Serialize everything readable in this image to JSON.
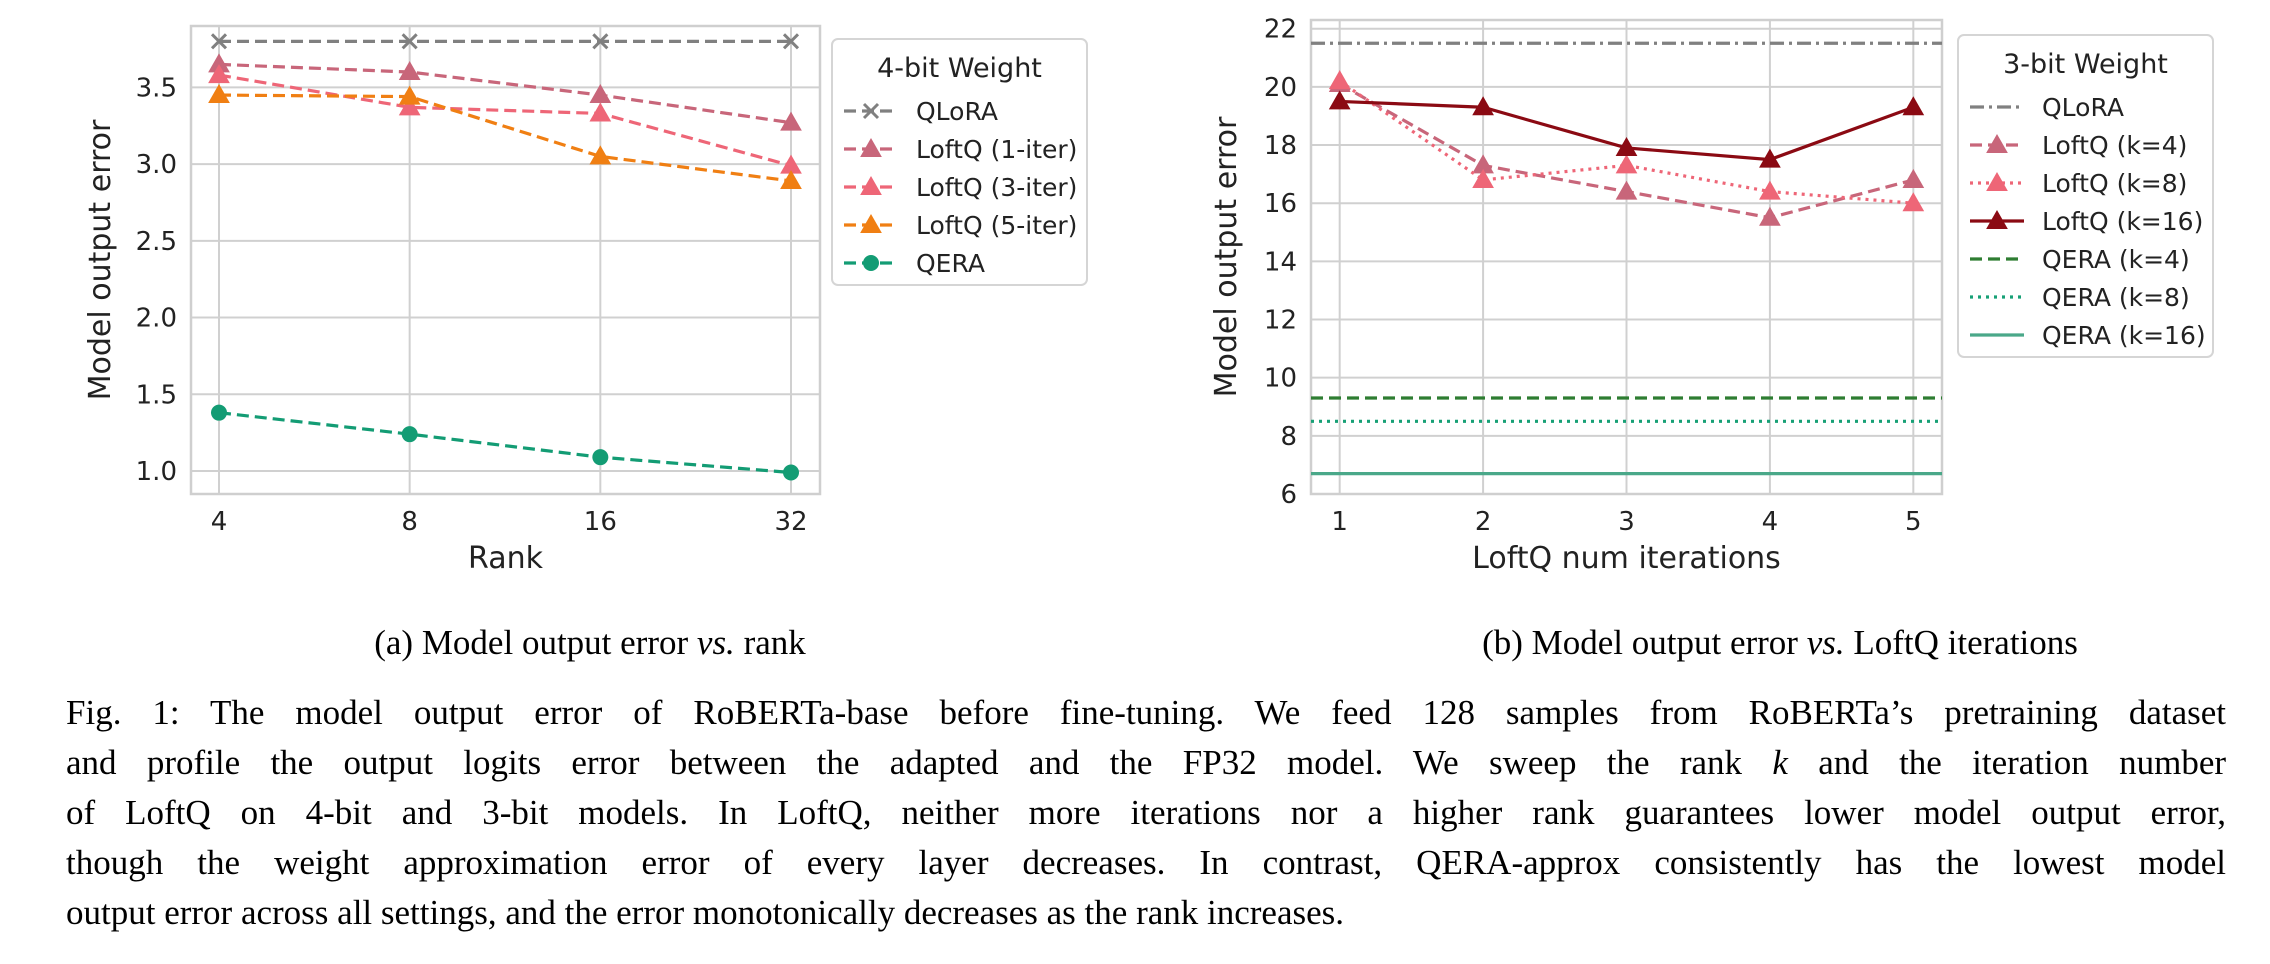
{
  "chart_data": [
    {
      "type": "line",
      "subcaption_prefix": "(a) Model output error ",
      "subcaption_vs": "vs.",
      "subcaption_suffix": " rank",
      "xlabel": "Rank",
      "ylabel": "Model output error",
      "x": [
        4,
        8,
        16,
        32
      ],
      "x_tick_labels": [
        "4",
        "8",
        "16",
        "32"
      ],
      "x_scale": "log2",
      "ylim": [
        0.85,
        3.9
      ],
      "y_ticks": [
        1.0,
        1.5,
        2.0,
        2.5,
        3.0,
        3.5
      ],
      "y_tick_labels": [
        "1.0",
        "1.5",
        "2.0",
        "2.5",
        "3.0",
        "3.5"
      ],
      "grid": true,
      "legend_title": "4-bit Weight",
      "legend_position": "upper-right-outside",
      "series": [
        {
          "name": "QLoRA",
          "values": [
            3.8,
            3.8,
            3.8,
            3.8
          ],
          "color": "#808080",
          "dash": "dashed",
          "marker": "x"
        },
        {
          "name": "LoftQ (1-iter)",
          "values": [
            3.65,
            3.6,
            3.45,
            3.27
          ],
          "color": "#c8667a",
          "dash": "dashed",
          "marker": "triangle"
        },
        {
          "name": "LoftQ (3-iter)",
          "values": [
            3.58,
            3.37,
            3.33,
            2.99
          ],
          "color": "#ee6677",
          "dash": "dashed",
          "marker": "triangle"
        },
        {
          "name": "LoftQ (5-iter)",
          "values": [
            3.45,
            3.44,
            3.05,
            2.89
          ],
          "color": "#f07f13",
          "dash": "dashed",
          "marker": "triangle"
        },
        {
          "name": "QERA",
          "values": [
            1.38,
            1.24,
            1.09,
            0.99
          ],
          "color": "#139c74",
          "dash": "dashed",
          "marker": "circle"
        }
      ]
    },
    {
      "type": "line",
      "subcaption_prefix": "(b) Model output error ",
      "subcaption_vs": "vs.",
      "subcaption_suffix": " LoftQ iterations",
      "xlabel": "LoftQ num iterations",
      "ylabel": "Model output error",
      "x": [
        1,
        2,
        3,
        4,
        5
      ],
      "x_tick_labels": [
        "1",
        "2",
        "3",
        "4",
        "5"
      ],
      "xlim": [
        0.8,
        5.2
      ],
      "ylim": [
        6,
        22.3
      ],
      "y_ticks": [
        6,
        8,
        10,
        12,
        14,
        16,
        18,
        20,
        22
      ],
      "y_tick_labels": [
        "6",
        "8",
        "10",
        "12",
        "14",
        "16",
        "18",
        "20",
        "22"
      ],
      "grid": true,
      "legend_title": "3-bit Weight",
      "legend_position": "upper-right",
      "series": [
        {
          "name": "QLoRA",
          "values": [
            21.5,
            21.5,
            21.5,
            21.5,
            21.5
          ],
          "color": "#808080",
          "dash": "dashdot",
          "marker": "none",
          "span": "full"
        },
        {
          "name": "LoftQ (k=4)",
          "values": [
            20.1,
            17.3,
            16.4,
            15.5,
            16.8
          ],
          "color": "#c8667a",
          "dash": "dashed",
          "marker": "triangle"
        },
        {
          "name": "LoftQ (k=8)",
          "values": [
            20.2,
            16.8,
            17.3,
            16.4,
            16.0
          ],
          "color": "#ee6677",
          "dash": "dotted",
          "marker": "triangle"
        },
        {
          "name": "LoftQ (k=16)",
          "values": [
            19.5,
            19.3,
            17.9,
            17.5,
            19.3
          ],
          "color": "#8b0a13",
          "dash": "solid",
          "marker": "triangle"
        },
        {
          "name": "QERA (k=4)",
          "values": [
            9.3,
            9.3,
            9.3,
            9.3,
            9.3
          ],
          "color": "#2e7d32",
          "dash": "dashed",
          "marker": "none",
          "span": "full"
        },
        {
          "name": "QERA (k=8)",
          "values": [
            8.5,
            8.5,
            8.5,
            8.5,
            8.5
          ],
          "color": "#17a076",
          "dash": "dotted",
          "marker": "none",
          "span": "full"
        },
        {
          "name": "QERA (k=16)",
          "values": [
            6.7,
            6.7,
            6.7,
            6.7,
            6.7
          ],
          "color": "#4aa889",
          "dash": "solid",
          "marker": "none",
          "span": "full"
        }
      ]
    }
  ],
  "caption": {
    "lines": [
      "Fig. 1: The model output error of RoBERTa-base before fine-tuning. We feed 128 samples from RoBERTa’s pretraining dataset",
      "and profile the output logits error between the adapted and the FP32 model. We sweep the rank",
      "of LoftQ on 4-bit and 3-bit models. In LoftQ, neither more iterations nor a higher rank guarantees lower model output error,",
      "though the weight approximation error of every layer decreases. In contrast, QERA-approx consistently has the lowest model",
      "output error across all settings, and the error monotonically decreases as the rank increases."
    ],
    "line2_var": "k",
    "line2_rest": " and the iteration number"
  }
}
